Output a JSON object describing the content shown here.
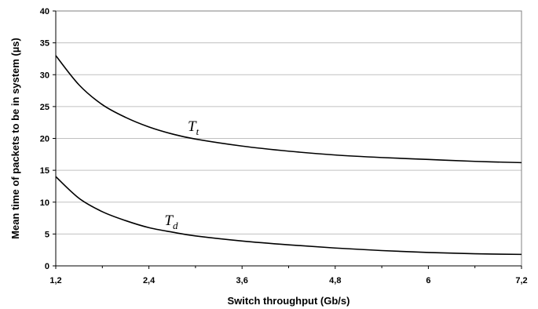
{
  "chart_data": {
    "type": "line",
    "title": "",
    "xlabel": "Switch throughput  (Gb/s)",
    "ylabel": "Mean time of packets to be in system  (µs)",
    "xlim": [
      1.2,
      7.2
    ],
    "ylim": [
      0,
      40
    ],
    "x_ticks": [
      1.2,
      2.4,
      3.6,
      4.8,
      6,
      7.2
    ],
    "x_tick_labels": [
      "1,2",
      "2,4",
      "3,6",
      "4,8",
      "6",
      "7,2"
    ],
    "y_ticks": [
      0,
      5,
      10,
      15,
      20,
      25,
      30,
      35,
      40
    ],
    "y_tick_labels": [
      "0",
      "5",
      "10",
      "15",
      "20",
      "25",
      "30",
      "35",
      "40"
    ],
    "grid": "horizontal",
    "legend": "none",
    "line_color": "#000000",
    "grid_color": "#c0c0c0",
    "series": [
      {
        "name": "T_t",
        "label_main": "T",
        "label_sub": "t",
        "label_at": [
          2.9,
          21.2
        ],
        "x": [
          1.2,
          1.5,
          1.8,
          2.1,
          2.4,
          2.7,
          3.0,
          3.6,
          4.2,
          4.8,
          5.4,
          6.0,
          6.6,
          7.2
        ],
        "y": [
          33.0,
          28.4,
          25.3,
          23.3,
          21.8,
          20.7,
          19.9,
          18.8,
          18.0,
          17.4,
          17.0,
          16.7,
          16.4,
          16.2
        ]
      },
      {
        "name": "T_d",
        "label_main": "T",
        "label_sub": "d",
        "label_at": [
          2.6,
          6.4
        ],
        "x": [
          1.2,
          1.5,
          1.8,
          2.1,
          2.4,
          2.7,
          3.0,
          3.6,
          4.2,
          4.8,
          5.4,
          6.0,
          6.6,
          7.2
        ],
        "y": [
          14.0,
          10.6,
          8.5,
          7.1,
          6.0,
          5.3,
          4.7,
          3.9,
          3.3,
          2.8,
          2.4,
          2.1,
          1.9,
          1.8
        ]
      }
    ]
  }
}
